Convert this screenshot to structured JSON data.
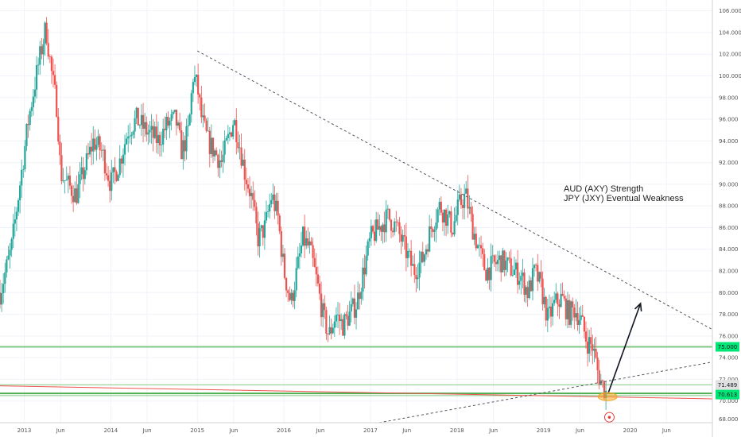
{
  "chart_data": {
    "type": "candlestick",
    "title": "",
    "xlabel": "",
    "ylabel": "",
    "ylim": [
      68,
      107
    ],
    "y_ticks": [
      70,
      72,
      74,
      76,
      78,
      80,
      82,
      84,
      86,
      88,
      90,
      92,
      94,
      96,
      98,
      100,
      102,
      104,
      106
    ],
    "y_tick_labels": [
      "70.000",
      "72.000",
      "74.000",
      "76.000",
      "78.000",
      "80.000",
      "82.000",
      "84.000",
      "86.000",
      "88.000",
      "90.000",
      "92.000",
      "94.000",
      "96.000",
      "98.000",
      "100.000",
      "102.000",
      "104.000",
      "106.000"
    ],
    "y_extra_tick": {
      "value": 68,
      "label": "68.000"
    },
    "x_range": [
      2012.72,
      2020.95
    ],
    "x_ticks": [
      {
        "label": "2013",
        "x": 2013.0
      },
      {
        "label": "Jun",
        "x": 2013.42
      },
      {
        "label": "2014",
        "x": 2014.0
      },
      {
        "label": "Jun",
        "x": 2014.42
      },
      {
        "label": "2015",
        "x": 2015.0
      },
      {
        "label": "Jun",
        "x": 2015.42
      },
      {
        "label": "2016",
        "x": 2016.0
      },
      {
        "label": "Jun",
        "x": 2016.42
      },
      {
        "label": "2017",
        "x": 2017.0
      },
      {
        "label": "Jun",
        "x": 2017.42
      },
      {
        "label": "2018",
        "x": 2018.0
      },
      {
        "label": "Jun",
        "x": 2018.42
      },
      {
        "label": "2019",
        "x": 2019.0
      },
      {
        "label": "Jun",
        "x": 2019.42
      },
      {
        "label": "2020",
        "x": 2020.0
      },
      {
        "label": "Jun",
        "x": 2020.42
      }
    ],
    "grid": true,
    "colors": {
      "up": "#26a69a",
      "down": "#ef5350",
      "green_line": "#4caf50",
      "green_line_light": "#81c784",
      "red_line": "#ef5350",
      "dashed": "#555555",
      "tag_green": "#00e676",
      "tag_gray": "#e0e0e0",
      "highlight": "#f5a623"
    },
    "price_path": [
      [
        2012.72,
        80.0
      ],
      [
        2012.85,
        84.0
      ],
      [
        2012.95,
        90.0
      ],
      [
        2013.05,
        96.0
      ],
      [
        2013.15,
        100.5
      ],
      [
        2013.25,
        104.5
      ],
      [
        2013.32,
        100.0
      ],
      [
        2013.38,
        97.0
      ],
      [
        2013.42,
        91.0
      ],
      [
        2013.5,
        90.0
      ],
      [
        2013.6,
        89.0
      ],
      [
        2013.7,
        91.5
      ],
      [
        2013.8,
        94.0
      ],
      [
        2013.9,
        93.0
      ],
      [
        2014.0,
        90.0
      ],
      [
        2014.1,
        92.0
      ],
      [
        2014.2,
        95.0
      ],
      [
        2014.3,
        96.0
      ],
      [
        2014.4,
        95.0
      ],
      [
        2014.55,
        94.0
      ],
      [
        2014.65,
        95.5
      ],
      [
        2014.75,
        96.0
      ],
      [
        2014.82,
        93.0
      ],
      [
        2014.9,
        95.0
      ],
      [
        2014.95,
        100.0
      ],
      [
        2015.0,
        99.0
      ],
      [
        2015.05,
        96.0
      ],
      [
        2015.12,
        94.0
      ],
      [
        2015.2,
        93.0
      ],
      [
        2015.28,
        92.0
      ],
      [
        2015.35,
        94.0
      ],
      [
        2015.42,
        96.0
      ],
      [
        2015.48,
        94.0
      ],
      [
        2015.55,
        91.0
      ],
      [
        2015.62,
        89.0
      ],
      [
        2015.7,
        85.0
      ],
      [
        2015.78,
        86.0
      ],
      [
        2015.86,
        89.0
      ],
      [
        2015.93,
        87.0
      ],
      [
        2016.0,
        82.0
      ],
      [
        2016.08,
        79.0
      ],
      [
        2016.15,
        82.0
      ],
      [
        2016.22,
        85.0
      ],
      [
        2016.3,
        84.0
      ],
      [
        2016.38,
        81.0
      ],
      [
        2016.45,
        78.0
      ],
      [
        2016.52,
        76.0
      ],
      [
        2016.6,
        78.0
      ],
      [
        2016.68,
        77.0
      ],
      [
        2016.76,
        78.0
      ],
      [
        2016.84,
        79.0
      ],
      [
        2016.92,
        82.0
      ],
      [
        2017.0,
        85.0
      ],
      [
        2017.1,
        86.0
      ],
      [
        2017.2,
        87.0
      ],
      [
        2017.3,
        86.0
      ],
      [
        2017.4,
        84.0
      ],
      [
        2017.5,
        82.0
      ],
      [
        2017.6,
        83.0
      ],
      [
        2017.7,
        86.0
      ],
      [
        2017.8,
        88.0
      ],
      [
        2017.88,
        87.0
      ],
      [
        2017.95,
        86.0
      ],
      [
        2018.02,
        88.0
      ],
      [
        2018.1,
        89.0
      ],
      [
        2018.18,
        86.0
      ],
      [
        2018.25,
        84.0
      ],
      [
        2018.33,
        82.0
      ],
      [
        2018.42,
        82.5
      ],
      [
        2018.5,
        83.0
      ],
      [
        2018.58,
        82.5
      ],
      [
        2018.66,
        82.0
      ],
      [
        2018.74,
        81.5
      ],
      [
        2018.82,
        80.0
      ],
      [
        2018.9,
        82.0
      ],
      [
        2018.97,
        80.5
      ],
      [
        2019.05,
        77.5
      ],
      [
        2019.13,
        79.0
      ],
      [
        2019.21,
        79.5
      ],
      [
        2019.29,
        78.0
      ],
      [
        2019.36,
        78.5
      ],
      [
        2019.43,
        77.5
      ],
      [
        2019.5,
        75.5
      ],
      [
        2019.57,
        75.0
      ],
      [
        2019.63,
        72.5
      ],
      [
        2019.68,
        71.5
      ],
      [
        2019.72,
        70.8
      ]
    ],
    "overlays": {
      "resistance_dashed": {
        "from": [
          2015.0,
          102.3
        ],
        "to": [
          2020.95,
          76.6
        ]
      },
      "support_dashed": {
        "from": [
          2017.1,
          68.0
        ],
        "to": [
          2020.95,
          73.6
        ]
      },
      "green_level_upper": 75.0,
      "green_level_lower_band": [
        70.7,
        70.5
      ],
      "light_green_level": 71.5,
      "red_trend": {
        "from": [
          2012.72,
          71.4
        ],
        "to": [
          2020.95,
          70.2
        ]
      },
      "projection_arrow": {
        "from": [
          2019.75,
          70.8
        ],
        "to": [
          2020.12,
          79.0
        ]
      },
      "highlight_ellipse": {
        "x": 2019.74,
        "y": 70.4
      },
      "target_marker": {
        "x": 2019.76,
        "y": 68.5
      }
    },
    "price_tags": [
      {
        "label": "75.000",
        "value": 75.0,
        "style": "green"
      },
      {
        "label": "71.489",
        "value": 71.5,
        "style": "gray"
      },
      {
        "label": "70.613",
        "value": 70.6,
        "style": "green"
      }
    ],
    "annotations": [
      "AUD (AXY) Strength",
      "JPY (JXY) Eventual Weakness"
    ],
    "annotation_anchor": {
      "x": 2019.6,
      "y": 90.0
    }
  }
}
